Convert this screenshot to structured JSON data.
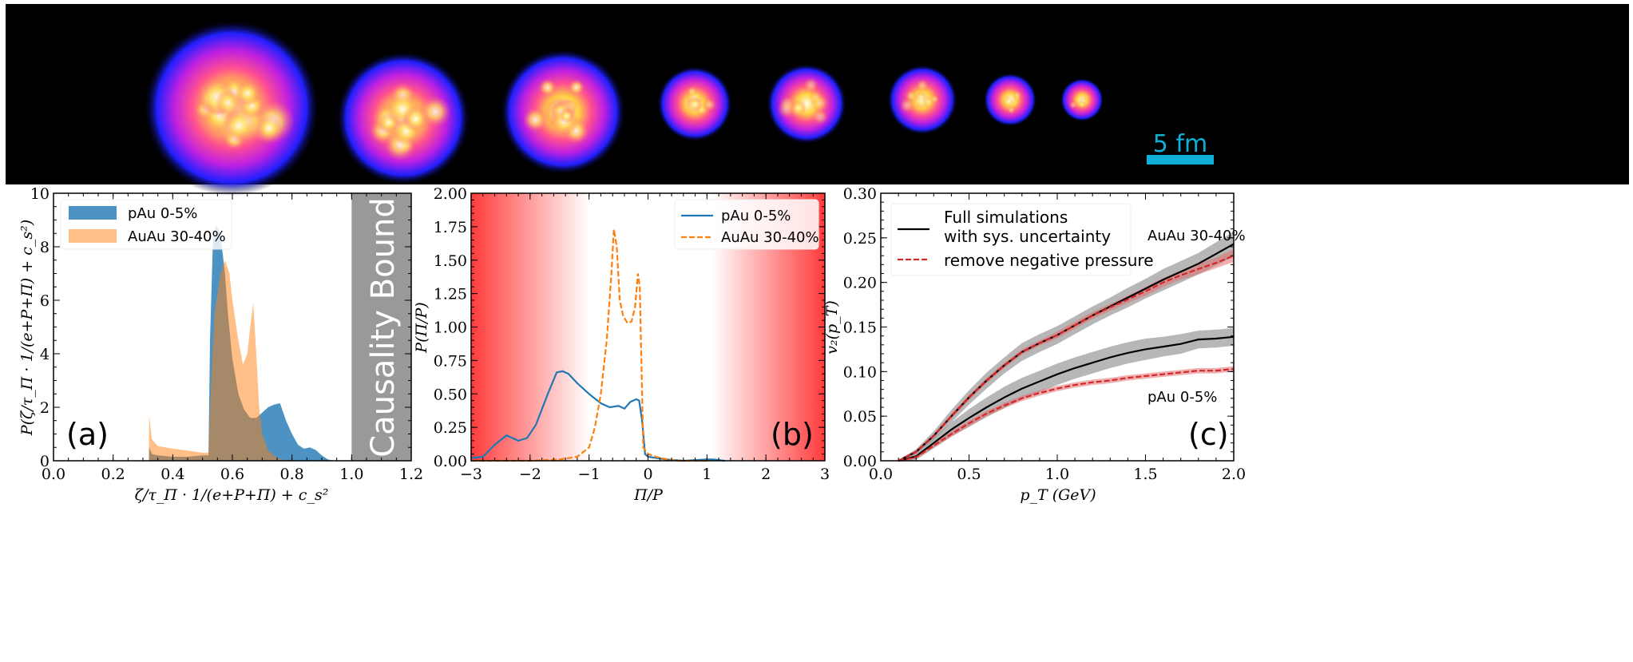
{
  "strip": {
    "scale_bar_label": "5 fm",
    "scale_bar_color": "#0fb0d8"
  },
  "chart_data": [
    {
      "type": "area",
      "panel_label": "(a)",
      "xlabel": "ζ/τ_Π · 1/(e+P+Π) + c_s²",
      "ylabel": "P(ζ/τ_Π · 1/(e+P+Π) + c_s²)",
      "xlim": [
        0,
        1.2
      ],
      "ylim": [
        0,
        10
      ],
      "xticks": [
        0,
        0.2,
        0.4,
        0.6,
        0.8,
        1.0,
        1.2
      ],
      "xtick_labels": [
        "0.0",
        "0.2",
        "0.4",
        "0.6",
        "0.8",
        "1.0",
        "1.2"
      ],
      "yticks": [
        0,
        2,
        4,
        6,
        8,
        10
      ],
      "ytick_labels": [
        "0",
        "2",
        "4",
        "6",
        "8",
        "10"
      ],
      "legend_position": "top-left",
      "annotation": {
        "text": "Causality Bound",
        "x_range": [
          1.0,
          1.2
        ],
        "color": "#999999"
      },
      "series": [
        {
          "name": "pAu 0-5%",
          "color": "#1f77b4",
          "x": [
            0.32,
            0.321,
            0.33,
            0.35,
            0.4,
            0.45,
            0.5,
            0.52,
            0.525,
            0.535,
            0.545,
            0.555,
            0.565,
            0.575,
            0.585,
            0.6,
            0.62,
            0.64,
            0.66,
            0.68,
            0.7,
            0.72,
            0.74,
            0.76,
            0.78,
            0.8,
            0.82,
            0.84,
            0.86,
            0.88,
            0.9,
            0.92,
            0.94
          ],
          "y": [
            0,
            0.5,
            0.25,
            0.2,
            0.15,
            0.15,
            0.2,
            0.2,
            4.5,
            8.3,
            8.8,
            8.6,
            8.0,
            7.0,
            5.5,
            3.8,
            2.5,
            1.9,
            1.6,
            1.6,
            1.8,
            2.0,
            2.1,
            2.15,
            1.5,
            1.0,
            0.6,
            0.45,
            0.5,
            0.4,
            0.2,
            0.05,
            0
          ]
        },
        {
          "name": "AuAu 30-40%",
          "color": "#ff7f0e",
          "x": [
            0.32,
            0.321,
            0.33,
            0.35,
            0.4,
            0.45,
            0.5,
            0.52,
            0.525,
            0.54,
            0.56,
            0.575,
            0.59,
            0.6,
            0.62,
            0.635,
            0.65,
            0.66,
            0.67,
            0.68,
            0.69,
            0.7,
            0.72,
            0.75,
            0.78
          ],
          "y": [
            0,
            1.7,
            0.8,
            0.55,
            0.45,
            0.38,
            0.3,
            0.3,
            2.0,
            5.5,
            7.0,
            7.5,
            7.0,
            6.0,
            4.5,
            3.6,
            4.0,
            5.0,
            5.9,
            4.0,
            2.0,
            1.0,
            0.4,
            0.1,
            0
          ]
        }
      ]
    },
    {
      "type": "line",
      "panel_label": "(b)",
      "xlabel": "Π/P",
      "ylabel": "P(Π/P)",
      "xlim": [
        -3,
        3
      ],
      "ylim": [
        0,
        2
      ],
      "xticks": [
        -3,
        -2,
        -1,
        0,
        1,
        2,
        3
      ],
      "xtick_labels": [
        "−3",
        "−2",
        "−1",
        "0",
        "1",
        "2",
        "3"
      ],
      "yticks": [
        0,
        0.25,
        0.5,
        0.75,
        1.0,
        1.25,
        1.5,
        1.75,
        2.0
      ],
      "ytick_labels": [
        "0.00",
        "0.25",
        "0.50",
        "0.75",
        "1.00",
        "1.25",
        "1.50",
        "1.75",
        "2.00"
      ],
      "legend_position": "top-right",
      "background_shading": {
        "color": "#ff3b3b",
        "red_below": -1,
        "red_above": 1
      },
      "series": [
        {
          "name": "pAu 0-5%",
          "color": "#1f77b4",
          "style": "solid",
          "x": [
            -3,
            -2.8,
            -2.6,
            -2.4,
            -2.3,
            -2.2,
            -2.05,
            -1.9,
            -1.7,
            -1.55,
            -1.45,
            -1.35,
            -1.2,
            -1.0,
            -0.8,
            -0.65,
            -0.5,
            -0.4,
            -0.3,
            -0.2,
            -0.15,
            -0.1,
            -0.05,
            0,
            0.3,
            0.6,
            1.0,
            1.1,
            1.3
          ],
          "y": [
            0.02,
            0.03,
            0.12,
            0.19,
            0.17,
            0.15,
            0.17,
            0.27,
            0.5,
            0.66,
            0.67,
            0.65,
            0.58,
            0.5,
            0.43,
            0.4,
            0.41,
            0.39,
            0.44,
            0.46,
            0.45,
            0.3,
            0.05,
            0.03,
            0.01,
            0,
            0.01,
            0.01,
            0
          ]
        },
        {
          "name": "AuAu 30-40%",
          "color": "#ff7f0e",
          "style": "dashed",
          "x": [
            -3,
            -2,
            -1.5,
            -1.2,
            -1.0,
            -0.9,
            -0.8,
            -0.7,
            -0.62,
            -0.58,
            -0.53,
            -0.48,
            -0.42,
            -0.35,
            -0.28,
            -0.22,
            -0.17,
            -0.14,
            -0.1,
            -0.08,
            0,
            0.2,
            0.5,
            1.0
          ],
          "y": [
            0,
            0,
            0.01,
            0.03,
            0.1,
            0.25,
            0.5,
            0.9,
            1.4,
            1.73,
            1.6,
            1.2,
            1.08,
            1.03,
            1.04,
            1.15,
            1.4,
            1.3,
            0.5,
            0.1,
            0.05,
            0.02,
            0,
            0
          ]
        }
      ]
    },
    {
      "type": "line",
      "panel_label": "(c)",
      "xlabel": "p_T (GeV)",
      "ylabel": "v₂(p_T)",
      "xlim": [
        0,
        2.0
      ],
      "ylim": [
        0,
        0.3
      ],
      "xticks": [
        0,
        0.5,
        1.0,
        1.5,
        2.0
      ],
      "xtick_labels": [
        "0.0",
        "0.5",
        "1.0",
        "1.5",
        "2.0"
      ],
      "yticks": [
        0,
        0.05,
        0.1,
        0.15,
        0.2,
        0.25,
        0.3
      ],
      "ytick_labels": [
        "0.00",
        "0.05",
        "0.10",
        "0.15",
        "0.20",
        "0.25",
        "0.30"
      ],
      "legend_position": "top-left",
      "legend": [
        "Full simulations",
        "with sys. uncertainty",
        "remove negative pressure"
      ],
      "annotations": [
        "AuAu 30-40%",
        "pAu 0-5%"
      ],
      "x": [
        0.1,
        0.2,
        0.3,
        0.4,
        0.5,
        0.6,
        0.7,
        0.8,
        0.9,
        1.0,
        1.1,
        1.2,
        1.3,
        1.4,
        1.5,
        1.6,
        1.7,
        1.8,
        1.9,
        2.0
      ],
      "series": [
        {
          "system": "AuAu 30-40%",
          "kind": "full",
          "color": "#000000",
          "band_color": "#999999",
          "y": [
            0,
            0.01,
            0.028,
            0.05,
            0.071,
            0.09,
            0.107,
            0.122,
            0.132,
            0.141,
            0.152,
            0.163,
            0.173,
            0.183,
            0.193,
            0.203,
            0.212,
            0.221,
            0.232,
            0.243
          ],
          "err": [
            0.001,
            0.003,
            0.005,
            0.007,
            0.008,
            0.009,
            0.009,
            0.01,
            0.01,
            0.01,
            0.01,
            0.01,
            0.01,
            0.011,
            0.011,
            0.012,
            0.012,
            0.012,
            0.013,
            0.014
          ]
        },
        {
          "system": "AuAu 30-40%",
          "kind": "no-negative-pressure",
          "color": "#d62728",
          "band_color": "#e07070",
          "y": [
            0,
            0.01,
            0.028,
            0.05,
            0.071,
            0.09,
            0.107,
            0.122,
            0.132,
            0.141,
            0.152,
            0.163,
            0.172,
            0.181,
            0.19,
            0.2,
            0.208,
            0.215,
            0.222,
            0.23
          ],
          "err": [
            0.001,
            0.002,
            0.002,
            0.003,
            0.003,
            0.003,
            0.003,
            0.003,
            0.003,
            0.004,
            0.004,
            0.004,
            0.004,
            0.004,
            0.005,
            0.005,
            0.005,
            0.006,
            0.006,
            0.007
          ]
        },
        {
          "system": "pAu 0-5%",
          "kind": "full",
          "color": "#000000",
          "band_color": "#999999",
          "y": [
            0,
            0.005,
            0.02,
            0.035,
            0.048,
            0.06,
            0.071,
            0.081,
            0.089,
            0.097,
            0.104,
            0.11,
            0.116,
            0.121,
            0.125,
            0.128,
            0.131,
            0.136,
            0.137,
            0.139
          ],
          "err": [
            0.001,
            0.004,
            0.006,
            0.008,
            0.01,
            0.011,
            0.012,
            0.012,
            0.012,
            0.012,
            0.012,
            0.012,
            0.012,
            0.012,
            0.012,
            0.011,
            0.011,
            0.01,
            0.01,
            0.01
          ]
        },
        {
          "system": "pAu 0-5%",
          "kind": "no-negative-pressure",
          "color": "#d62728",
          "band_color": "#e07070",
          "y": [
            0,
            0.004,
            0.017,
            0.03,
            0.042,
            0.053,
            0.062,
            0.07,
            0.076,
            0.081,
            0.085,
            0.088,
            0.09,
            0.093,
            0.095,
            0.097,
            0.099,
            0.101,
            0.101,
            0.103
          ],
          "err": [
            0.001,
            0.002,
            0.002,
            0.003,
            0.003,
            0.003,
            0.003,
            0.003,
            0.003,
            0.003,
            0.003,
            0.003,
            0.003,
            0.003,
            0.003,
            0.003,
            0.003,
            0.003,
            0.003,
            0.003
          ]
        }
      ]
    }
  ]
}
